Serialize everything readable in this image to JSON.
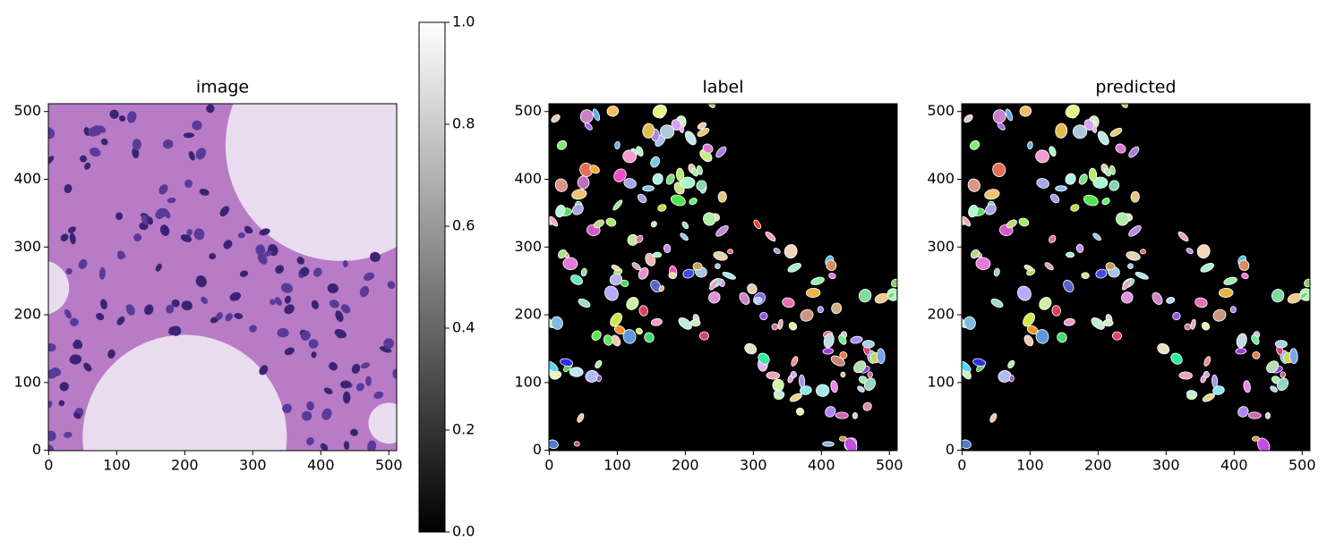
{
  "chart_data": [
    {
      "type": "image",
      "title": "image",
      "xlim": [
        -0.5,
        511.5
      ],
      "ylim": [
        511.5,
        -0.5
      ],
      "xticks": [
        0,
        100,
        200,
        300,
        400,
        500
      ],
      "yticks": [
        0,
        100,
        200,
        300,
        400,
        500
      ],
      "colorbar": {
        "lim": [
          0,
          1
        ],
        "ticks": [
          {
            "value": 0,
            "label": "0.0"
          },
          0.2,
          0.4,
          0.6,
          0.8,
          {
            "value": 1,
            "label": "1.0"
          }
        ],
        "cmap": "gray"
      }
    },
    {
      "type": "image",
      "title": "label",
      "xlim": [
        -0.5,
        511.5
      ],
      "ylim": [
        511.5,
        -0.5
      ],
      "xticks": [
        0,
        100,
        200,
        300,
        400,
        500
      ],
      "yticks": [
        0,
        100,
        200,
        300,
        400,
        500
      ]
    },
    {
      "type": "image",
      "title": "predicted",
      "xlim": [
        -0.5,
        511.5
      ],
      "ylim": [
        511.5,
        -0.5
      ],
      "xticks": [
        0,
        100,
        200,
        300,
        400,
        500
      ],
      "yticks": [
        0,
        100,
        200,
        300,
        400,
        500
      ]
    }
  ]
}
